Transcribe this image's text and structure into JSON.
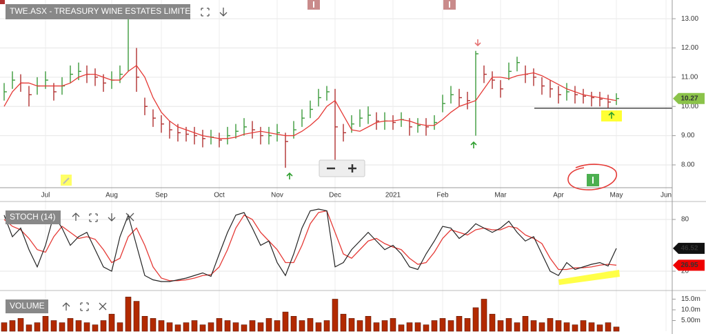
{
  "chart_data": [
    {
      "type": "ohlc",
      "title": "TWE.ASX - TREASURY WINE ESTATES LIMITED",
      "categories": [
        null,
        null,
        null,
        null,
        null,
        "Jul",
        null,
        null,
        null,
        null,
        null,
        null,
        null,
        "Aug",
        null,
        null,
        null,
        null,
        null,
        "Sep",
        null,
        null,
        null,
        null,
        null,
        null,
        "Oct",
        null,
        null,
        null,
        null,
        null,
        null,
        "Nov",
        null,
        null,
        null,
        null,
        null,
        null,
        "Dec",
        null,
        null,
        null,
        null,
        null,
        null,
        "2021",
        null,
        null,
        null,
        null,
        null,
        "Feb",
        null,
        null,
        null,
        null,
        null,
        null,
        "Mar",
        null,
        null,
        null,
        null,
        null,
        null,
        "Apr",
        null,
        null,
        null,
        null,
        null,
        null,
        "May",
        null,
        null,
        null,
        null,
        null,
        "Jun"
      ],
      "high": [
        10.8,
        11.2,
        11.1,
        10.7,
        11.0,
        11.2,
        10.8,
        11.0,
        11.4,
        11.5,
        11.4,
        11.3,
        11.1,
        11.2,
        11.4,
        13.5,
        12.0,
        10.3,
        9.9,
        9.7,
        9.5,
        9.4,
        9.3,
        9.3,
        9.2,
        9.2,
        9.1,
        9.3,
        9.4,
        9.6,
        9.5,
        9.3,
        9.3,
        9.4,
        9.1,
        9.5,
        9.9,
        10.2,
        10.6,
        10.7,
        10.6,
        9.4,
        9.7,
        9.9,
        10.0,
        9.8,
        9.8,
        9.7,
        9.8,
        9.6,
        9.6,
        9.6,
        9.7,
        10.4,
        10.7,
        10.6,
        10.5,
        11.9,
        11.4,
        11.2,
        10.9,
        11.5,
        11.7,
        11.4,
        11.3,
        11.0,
        10.9,
        10.7,
        10.8,
        10.7,
        10.6,
        10.5,
        10.5,
        10.4,
        10.45,
        null,
        null,
        null,
        null,
        null,
        null
      ],
      "low": [
        10.2,
        10.6,
        10.5,
        10.0,
        10.4,
        10.6,
        10.2,
        10.4,
        10.8,
        10.9,
        10.8,
        10.7,
        10.5,
        10.6,
        10.8,
        11.2,
        10.5,
        9.7,
        9.3,
        9.1,
        8.9,
        8.8,
        8.8,
        8.7,
        8.6,
        8.7,
        8.6,
        8.7,
        8.9,
        9.0,
        8.9,
        8.7,
        8.7,
        8.8,
        7.9,
        8.9,
        9.3,
        9.6,
        10.0,
        10.2,
        8.1,
        8.8,
        9.1,
        9.3,
        9.4,
        9.2,
        9.2,
        9.2,
        9.3,
        9.0,
        9.1,
        9.0,
        9.2,
        9.8,
        10.1,
        10.0,
        9.9,
        9.0,
        10.8,
        10.6,
        10.3,
        10.9,
        11.2,
        10.8,
        10.7,
        10.4,
        10.3,
        10.1,
        10.2,
        10.1,
        10.1,
        10.0,
        10.0,
        9.95,
        10.05,
        null,
        null,
        null,
        null,
        null,
        null
      ],
      "close": [
        10.5,
        10.9,
        10.8,
        10.4,
        10.7,
        10.9,
        10.5,
        10.7,
        11.1,
        11.2,
        11.1,
        11.0,
        10.8,
        10.9,
        11.1,
        13.1,
        11.0,
        10.0,
        9.6,
        9.4,
        9.2,
        9.1,
        9.05,
        9.0,
        8.9,
        8.95,
        8.85,
        9.0,
        9.15,
        9.3,
        9.2,
        9.0,
        9.0,
        9.1,
        8.8,
        9.2,
        9.6,
        9.9,
        10.3,
        10.5,
        9.3,
        9.1,
        9.4,
        9.6,
        9.7,
        9.5,
        9.5,
        9.45,
        9.55,
        9.3,
        9.35,
        9.3,
        9.45,
        10.1,
        10.4,
        10.3,
        10.2,
        11.8,
        11.1,
        10.9,
        10.6,
        11.2,
        11.5,
        11.1,
        11.0,
        10.7,
        10.6,
        10.4,
        10.5,
        10.4,
        10.35,
        10.3,
        10.25,
        10.15,
        10.27,
        null,
        null,
        null,
        null,
        null,
        null
      ],
      "ma": [
        10.0,
        10.5,
        10.8,
        10.8,
        10.7,
        10.7,
        10.7,
        10.7,
        10.8,
        11.0,
        11.1,
        11.1,
        11.0,
        10.9,
        10.9,
        11.2,
        11.4,
        11.0,
        10.3,
        9.8,
        9.5,
        9.3,
        9.2,
        9.1,
        9.0,
        8.95,
        8.9,
        8.9,
        8.95,
        9.05,
        9.1,
        9.15,
        9.1,
        9.05,
        9.0,
        9.0,
        9.15,
        9.35,
        9.6,
        10.0,
        10.2,
        9.7,
        9.2,
        9.15,
        9.3,
        9.45,
        9.5,
        9.5,
        9.55,
        9.5,
        9.4,
        9.35,
        9.35,
        9.55,
        9.8,
        10.0,
        10.1,
        10.2,
        10.6,
        11.0,
        11.0,
        10.95,
        11.05,
        11.1,
        11.15,
        11.05,
        10.9,
        10.75,
        10.6,
        10.5,
        10.4,
        10.35,
        10.3,
        10.25,
        10.2,
        null,
        null,
        null,
        null,
        null,
        null
      ],
      "up_color": "#3a9a3a",
      "down_color": "#b03030",
      "ma_color": "#e53935",
      "hline": 9.94,
      "ylim": [
        7.22,
        13.64
      ],
      "yticks": [
        {
          "value": 8,
          "label": "8.00"
        },
        {
          "value": 9,
          "label": "9.00"
        },
        {
          "value": 10,
          "label": "10.00"
        },
        {
          "value": 11,
          "label": "11.00"
        },
        {
          "value": 12,
          "label": "12.00"
        },
        {
          "value": 13,
          "label": "13.00"
        }
      ],
      "grid": true
    },
    {
      "type": "stochastic",
      "title": "STOCH (14)",
      "k": [
        85,
        60,
        70,
        45,
        25,
        50,
        85,
        70,
        50,
        60,
        65,
        45,
        25,
        20,
        60,
        85,
        50,
        15,
        10,
        8,
        8,
        10,
        12,
        15,
        18,
        14,
        40,
        65,
        85,
        88,
        70,
        50,
        55,
        30,
        15,
        40,
        70,
        90,
        92,
        90,
        25,
        30,
        45,
        55,
        65,
        55,
        45,
        50,
        40,
        25,
        22,
        40,
        55,
        72,
        70,
        58,
        65,
        75,
        70,
        65,
        70,
        78,
        65,
        55,
        60,
        40,
        20,
        15,
        30,
        22,
        25,
        28,
        30,
        26,
        46.52,
        null,
        null,
        null,
        null,
        null,
        null
      ],
      "d": [
        80,
        72,
        68,
        58,
        45,
        42,
        60,
        72,
        65,
        58,
        60,
        57,
        45,
        30,
        35,
        60,
        70,
        50,
        25,
        12,
        9,
        9,
        10,
        12,
        15,
        16,
        25,
        45,
        70,
        85,
        80,
        65,
        55,
        45,
        30,
        30,
        50,
        75,
        88,
        90,
        65,
        40,
        35,
        45,
        55,
        58,
        52,
        48,
        45,
        35,
        28,
        30,
        42,
        58,
        68,
        65,
        62,
        68,
        70,
        68,
        68,
        72,
        70,
        62,
        58,
        52,
        35,
        22,
        22,
        24,
        24,
        25,
        27,
        28,
        26.95,
        null,
        null,
        null,
        null,
        null,
        null
      ],
      "k_color": "#222222",
      "d_color": "#e53935",
      "ylim": [
        -1.6,
        98.4
      ],
      "yticks": [
        20,
        80
      ],
      "grid": true
    },
    {
      "type": "volume",
      "title": "VOLUME",
      "values": [
        4,
        5,
        6,
        3,
        4,
        7,
        5,
        4,
        6,
        5,
        4,
        3,
        5,
        8,
        4,
        16,
        14,
        7,
        6,
        5,
        4,
        3,
        4,
        5,
        3,
        4,
        6,
        5,
        4,
        3,
        5,
        4,
        6,
        5,
        9,
        7,
        5,
        6,
        4,
        5,
        15,
        8,
        6,
        5,
        7,
        4,
        5,
        6,
        3,
        4,
        4,
        3,
        5,
        6,
        5,
        7,
        6,
        11,
        15,
        8,
        5,
        6,
        4,
        7,
        5,
        4,
        6,
        5,
        4,
        3,
        5,
        4,
        3,
        4,
        2,
        null,
        null,
        null,
        null,
        null,
        null
      ],
      "color": "#b22a00",
      "ylim": [
        0,
        18.7
      ],
      "yticks": [
        {
          "value": 5,
          "label": "5.00m"
        },
        {
          "value": 10,
          "label": "10.0m"
        },
        {
          "value": 15,
          "label": "15.0m"
        }
      ]
    }
  ]
}
